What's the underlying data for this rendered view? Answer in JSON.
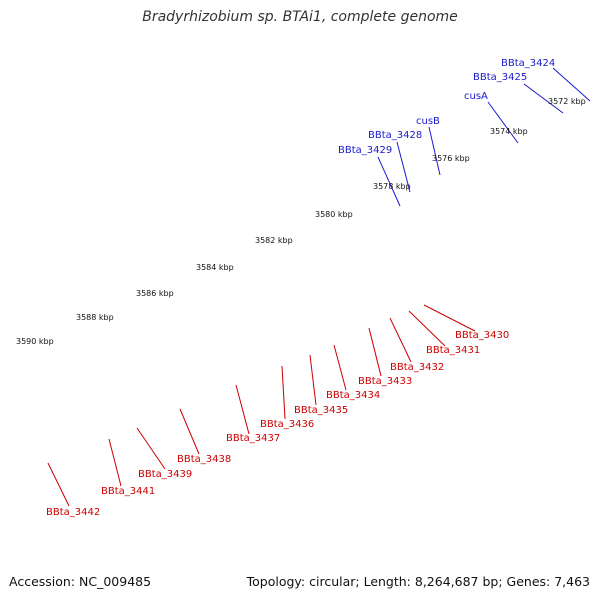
{
  "title": "Bradyrhizobium sp. BTAi1, complete genome",
  "footer": {
    "accession": "Accession: NC_009485",
    "summary": "Topology: circular; Length: 8,264,687 bp; Genes: 7,463"
  },
  "colors": {
    "backbone": "#888888",
    "tick": "#1d7a1d",
    "forward_label": "#1a1acc",
    "reverse_label": "#cc0000",
    "forward_gene": "#0a1aee",
    "reverse_gene": "#ee1111",
    "operon_band": "#3c3c8a",
    "gray_gene": "#6f6f6f",
    "green_gene": "#33cc33",
    "teal_gene": "#2ee6a8",
    "olive_gene": "#5e7a12"
  },
  "scale": {
    "unit": "kbp",
    "labels": [
      {
        "kbp": 3572,
        "text": "3572 kbp"
      },
      {
        "kbp": 3574,
        "text": "3574 kbp"
      },
      {
        "kbp": 3576,
        "text": "3576 kbp"
      },
      {
        "kbp": 3578,
        "text": "3578 kbp"
      },
      {
        "kbp": 3580,
        "text": "3580 kbp"
      },
      {
        "kbp": 3582,
        "text": "3582 kbp"
      },
      {
        "kbp": 3584,
        "text": "3584 kbp"
      },
      {
        "kbp": 3586,
        "text": "3586 kbp"
      },
      {
        "kbp": 3588,
        "text": "3588 kbp"
      },
      {
        "kbp": 3590,
        "text": "3590 kbp"
      }
    ]
  },
  "forward_labels": [
    {
      "text": "BBta_3424"
    },
    {
      "text": "BBta_3425"
    },
    {
      "text": "cusA"
    },
    {
      "text": "cusB"
    },
    {
      "text": "BBta_3428"
    },
    {
      "text": "BBta_3429"
    }
  ],
  "reverse_labels": [
    {
      "text": "BBta_3430"
    },
    {
      "text": "BBta_3431"
    },
    {
      "text": "BBta_3432"
    },
    {
      "text": "BBta_3433"
    },
    {
      "text": "BBta_3434"
    },
    {
      "text": "BBta_3435"
    },
    {
      "text": "BBta_3436"
    },
    {
      "text": "BBta_3437"
    },
    {
      "text": "BBta_3438"
    },
    {
      "text": "BBta_3439"
    },
    {
      "text": "BBta_3441"
    },
    {
      "text": "BBta_3442"
    }
  ]
}
